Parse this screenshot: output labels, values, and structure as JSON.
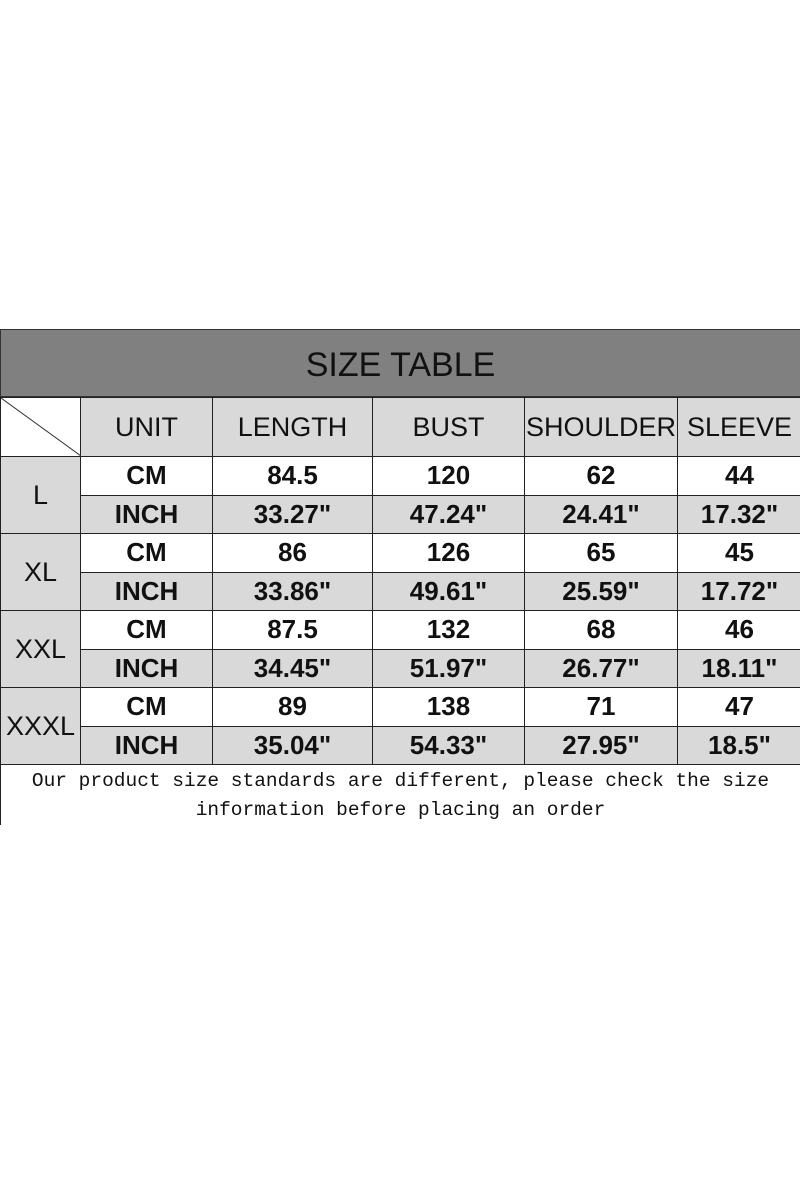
{
  "title": "SIZE TABLE",
  "headers": [
    "UNIT",
    "LENGTH",
    "BUST",
    "SHOULDER",
    "SLEEVE"
  ],
  "rows": [
    {
      "size": "L",
      "cm": [
        "CM",
        "84.5",
        "120",
        "62",
        "44"
      ],
      "inch": [
        "INCH",
        "33.27\"",
        "47.24\"",
        "24.41\"",
        "17.32\""
      ]
    },
    {
      "size": "XL",
      "cm": [
        "CM",
        "86",
        "126",
        "65",
        "45"
      ],
      "inch": [
        "INCH",
        "33.86\"",
        "49.61\"",
        "25.59\"",
        "17.72\""
      ]
    },
    {
      "size": "XXL",
      "cm": [
        "CM",
        "87.5",
        "132",
        "68",
        "46"
      ],
      "inch": [
        "INCH",
        "34.45\"",
        "51.97\"",
        "26.77\"",
        "18.11\""
      ]
    },
    {
      "size": "XXXL",
      "cm": [
        "CM",
        "89",
        "138",
        "71",
        "47"
      ],
      "inch": [
        "INCH",
        "35.04\"",
        "54.33\"",
        "27.95\"",
        "18.5\""
      ]
    }
  ],
  "note": {
    "line1": "Our product size standards are different, please check the size",
    "line2": "information before placing an order"
  }
}
